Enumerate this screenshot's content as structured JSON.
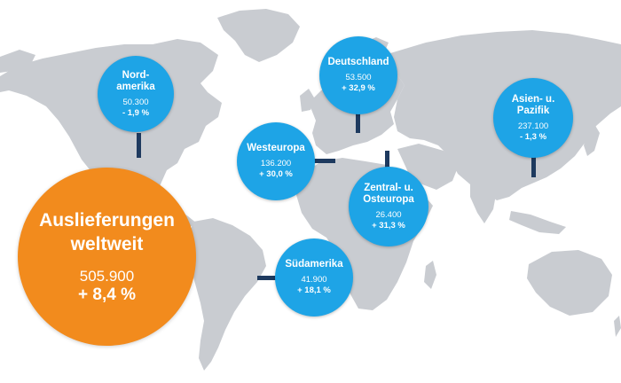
{
  "colors": {
    "land": "#c9ccd1",
    "bubble": "#1ea4e6",
    "main_bubble": "#f28b1d",
    "connector": "#1e3a5f"
  },
  "main": {
    "title_line1": "Auslieferungen",
    "title_line2": "weltweit",
    "value": "505.900",
    "change": "+ 8,4 %"
  },
  "regions": [
    {
      "name1": "Nord-",
      "name2": "amerika",
      "value": "50.300",
      "change": "- 1,9 %"
    },
    {
      "name1": "Deutschland",
      "name2": "",
      "value": "53.500",
      "change": "+ 32,9 %"
    },
    {
      "name1": "Asien- u.",
      "name2": "Pazifik",
      "value": "237.100",
      "change": "- 1,3 %"
    },
    {
      "name1": "Westeuropa",
      "name2": "",
      "value": "136.200",
      "change": "+ 30,0 %"
    },
    {
      "name1": "Zentral- u.",
      "name2": "Osteuropa",
      "value": "26.400",
      "change": "+ 31,3 %"
    },
    {
      "name1": "Südamerika",
      "name2": "",
      "value": "41.900",
      "change": "+ 18,1 %"
    }
  ]
}
